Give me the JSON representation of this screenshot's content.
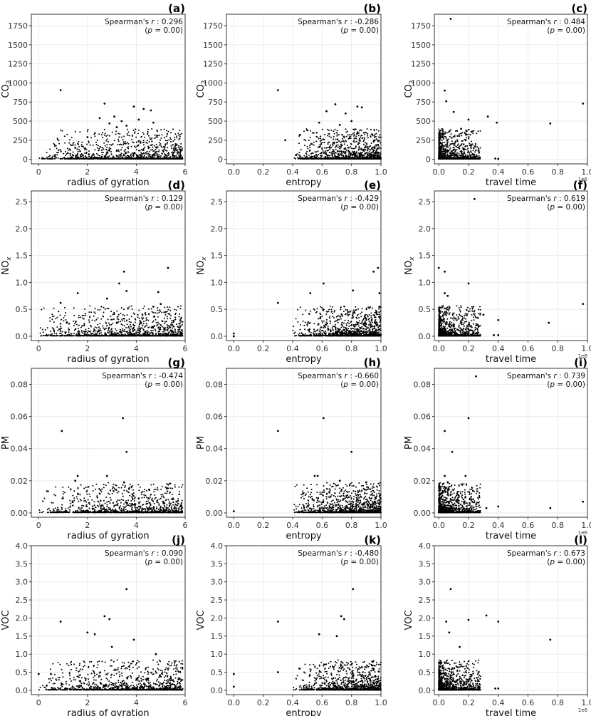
{
  "chart_data": [
    {
      "panel": "(a)",
      "type": "scatter",
      "xlabel": "radius of gyration",
      "ylabel": "CO2",
      "sub": "2",
      "x_axis": "rog",
      "xlim": [
        -0.3,
        6
      ],
      "xticks": [
        0,
        2,
        4,
        6
      ],
      "ylim": [
        -60,
        1900
      ],
      "yticks": [
        0,
        250,
        500,
        750,
        1000,
        1250,
        1500,
        1750
      ],
      "stat": {
        "r_value": "0.296",
        "p_text": "= 0.00"
      },
      "points": [
        [
          0.9,
          905
        ],
        [
          2.7,
          730
        ],
        [
          3.9,
          690
        ],
        [
          4.3,
          660
        ],
        [
          4.6,
          640
        ],
        [
          2.5,
          540
        ],
        [
          3.1,
          560
        ],
        [
          3.4,
          500
        ],
        [
          4.1,
          520
        ],
        [
          2.9,
          470
        ],
        [
          3.6,
          440
        ],
        [
          4.7,
          480
        ],
        [
          2.0,
          290
        ],
        [
          1.5,
          150
        ],
        [
          3.2,
          420
        ]
      ]
    },
    {
      "panel": "(b)",
      "type": "scatter",
      "xlabel": "entropy",
      "ylabel": "CO2",
      "sub": "2",
      "x_axis": "entropy",
      "xlim": [
        -0.05,
        1.0
      ],
      "xticks": [
        0,
        0.2,
        0.4,
        0.6,
        0.8,
        1.0
      ],
      "ylim": [
        -60,
        1900
      ],
      "yticks": [
        0,
        250,
        500,
        750,
        1000,
        1250,
        1500,
        1750
      ],
      "stat": {
        "r_value": "-0.286",
        "p_text": "= 0.00"
      },
      "points": [
        [
          0.3,
          905
        ],
        [
          0.69,
          720
        ],
        [
          0.84,
          690
        ],
        [
          0.87,
          680
        ],
        [
          0.63,
          630
        ],
        [
          0.76,
          600
        ],
        [
          0.58,
          480
        ],
        [
          0.8,
          500
        ],
        [
          0.5,
          380
        ],
        [
          0.35,
          250
        ],
        [
          0.45,
          320
        ],
        [
          0.72,
          450
        ]
      ]
    },
    {
      "panel": "(c)",
      "type": "scatter",
      "xlabel": "travel time",
      "ylabel": "CO2",
      "sub": "2",
      "x_axis": "travel",
      "multiplier": "1e6",
      "xlim": [
        -0.03,
        1.0
      ],
      "xticks": [
        0,
        0.2,
        0.4,
        0.6,
        0.8,
        1.0
      ],
      "ylim": [
        -60,
        1900
      ],
      "yticks": [
        0,
        250,
        500,
        750,
        1000,
        1250,
        1500,
        1750
      ],
      "stat": {
        "r_value": "0.484",
        "p_text": "= 0.00"
      },
      "points": [
        [
          0.08,
          1840
        ],
        [
          0.04,
          900
        ],
        [
          0.97,
          730
        ],
        [
          0.05,
          760
        ],
        [
          0.1,
          620
        ],
        [
          0.33,
          560
        ],
        [
          0.39,
          480
        ],
        [
          0.75,
          470
        ],
        [
          0.2,
          520
        ],
        [
          0.15,
          400
        ],
        [
          0.22,
          360
        ],
        [
          0.38,
          10
        ],
        [
          0.4,
          5
        ]
      ]
    },
    {
      "panel": "(d)",
      "type": "scatter",
      "xlabel": "radius of gyration",
      "ylabel": "NOx",
      "sub": "x",
      "x_axis": "rog",
      "xlim": [
        -0.3,
        6
      ],
      "xticks": [
        0,
        2,
        4,
        6
      ],
      "ylim": [
        -0.08,
        2.7
      ],
      "yticks": [
        0.0,
        0.5,
        1.0,
        1.5,
        2.0,
        2.5
      ],
      "stat": {
        "r_value": "0.129",
        "p_text": "= 0.00"
      },
      "points": [
        [
          3.5,
          1.2
        ],
        [
          5.3,
          1.27
        ],
        [
          3.3,
          0.98
        ],
        [
          3.6,
          0.84
        ],
        [
          4.9,
          0.82
        ],
        [
          1.6,
          0.8
        ],
        [
          0.9,
          0.62
        ],
        [
          2.8,
          0.7
        ],
        [
          5.0,
          0.6
        ],
        [
          4.7,
          0.55
        ],
        [
          5.2,
          0.45
        ]
      ]
    },
    {
      "panel": "(e)",
      "type": "scatter",
      "xlabel": "entropy",
      "ylabel": "NOx",
      "sub": "x",
      "x_axis": "entropy",
      "xlim": [
        -0.05,
        1.0
      ],
      "xticks": [
        0,
        0.2,
        0.4,
        0.6,
        0.8,
        1.0
      ],
      "ylim": [
        -0.08,
        2.7
      ],
      "yticks": [
        0.0,
        0.5,
        1.0,
        1.5,
        2.0,
        2.5
      ],
      "stat": {
        "r_value": "-0.429",
        "p_text": "= 0.00"
      },
      "points": [
        [
          0.98,
          1.27
        ],
        [
          0.95,
          1.2
        ],
        [
          0.61,
          0.98
        ],
        [
          0.81,
          0.85
        ],
        [
          0.52,
          0.8
        ],
        [
          0.99,
          0.8
        ],
        [
          0.3,
          0.62
        ],
        [
          0.99,
          0.55
        ],
        [
          0.97,
          0.45
        ],
        [
          0.99,
          0.35
        ],
        [
          0.0,
          0.05
        ],
        [
          0.0,
          0.0
        ]
      ]
    },
    {
      "panel": "(f)",
      "type": "scatter",
      "xlabel": "travel time",
      "ylabel": "NOx",
      "sub": "x",
      "x_axis": "travel",
      "multiplier": "1e6",
      "xlim": [
        -0.03,
        1.0
      ],
      "xticks": [
        0,
        0.2,
        0.4,
        0.6,
        0.8,
        1.0
      ],
      "ylim": [
        -0.08,
        2.7
      ],
      "yticks": [
        0.0,
        0.5,
        1.0,
        1.5,
        2.0,
        2.5
      ],
      "stat": {
        "r_value": "0.619",
        "p_text": "= 0.00"
      },
      "points": [
        [
          0.24,
          2.55
        ],
        [
          0.0,
          1.27
        ],
        [
          0.04,
          1.2
        ],
        [
          0.2,
          0.98
        ],
        [
          0.04,
          0.8
        ],
        [
          0.06,
          0.75
        ],
        [
          0.97,
          0.6
        ],
        [
          0.3,
          0.4
        ],
        [
          0.4,
          0.3
        ],
        [
          0.74,
          0.25
        ],
        [
          0.37,
          0.02
        ],
        [
          0.4,
          0.02
        ]
      ]
    },
    {
      "panel": "(g)",
      "type": "scatter",
      "xlabel": "radius of gyration",
      "ylabel": "PM",
      "sub": "",
      "x_axis": "rog",
      "xlim": [
        -0.3,
        6
      ],
      "xticks": [
        0,
        2,
        4,
        6
      ],
      "ylim": [
        -0.0027,
        0.09
      ],
      "yticks": [
        0.0,
        0.02,
        0.04,
        0.06,
        0.08
      ],
      "stat": {
        "r_value": "-0.474",
        "p_text": "= 0.00"
      },
      "points": [
        [
          0.95,
          0.051
        ],
        [
          3.45,
          0.059
        ],
        [
          3.6,
          0.038
        ],
        [
          1.6,
          0.023
        ],
        [
          2.8,
          0.023
        ],
        [
          3.5,
          0.019
        ],
        [
          1.5,
          0.02
        ],
        [
          3.7,
          0.015
        ],
        [
          2.5,
          0.012
        ],
        [
          4.1,
          0.009
        ]
      ]
    },
    {
      "panel": "(h)",
      "type": "scatter",
      "xlabel": "entropy",
      "ylabel": "PM",
      "sub": "",
      "x_axis": "entropy",
      "xlim": [
        -0.05,
        1.0
      ],
      "xticks": [
        0,
        0.2,
        0.4,
        0.6,
        0.8,
        1.0
      ],
      "ylim": [
        -0.0027,
        0.09
      ],
      "yticks": [
        0.0,
        0.02,
        0.04,
        0.06,
        0.08
      ],
      "stat": {
        "r_value": "-0.660",
        "p_text": "= 0.00"
      },
      "points": [
        [
          0.3,
          0.051
        ],
        [
          0.61,
          0.059
        ],
        [
          0.8,
          0.038
        ],
        [
          0.55,
          0.023
        ],
        [
          0.57,
          0.023
        ],
        [
          0.72,
          0.02
        ],
        [
          0.9,
          0.019
        ],
        [
          0.65,
          0.013
        ],
        [
          0.47,
          0.012
        ],
        [
          0.0,
          0.001
        ]
      ]
    },
    {
      "panel": "(i)",
      "type": "scatter",
      "xlabel": "travel time",
      "ylabel": "PM",
      "sub": "",
      "x_axis": "travel",
      "multiplier": "1e6",
      "xlim": [
        -0.03,
        1.0
      ],
      "xticks": [
        0,
        0.2,
        0.4,
        0.6,
        0.8,
        1.0
      ],
      "ylim": [
        -0.0027,
        0.09
      ],
      "yticks": [
        0.0,
        0.02,
        0.04,
        0.06,
        0.08
      ],
      "stat": {
        "r_value": "0.739",
        "p_text": "= 0.00"
      },
      "points": [
        [
          0.25,
          0.085
        ],
        [
          0.2,
          0.059
        ],
        [
          0.04,
          0.051
        ],
        [
          0.09,
          0.038
        ],
        [
          0.04,
          0.023
        ],
        [
          0.18,
          0.023
        ],
        [
          0.06,
          0.019
        ],
        [
          0.97,
          0.007
        ],
        [
          0.75,
          0.003
        ],
        [
          0.4,
          0.004
        ],
        [
          0.32,
          0.003
        ]
      ]
    },
    {
      "panel": "(j)",
      "type": "scatter",
      "xlabel": "radius of gyration",
      "ylabel": "VOC",
      "sub": "",
      "x_axis": "rog",
      "xlim": [
        -0.3,
        6
      ],
      "xticks": [
        0,
        2,
        4,
        6
      ],
      "ylim": [
        -0.12,
        4.0
      ],
      "yticks": [
        0.0,
        0.5,
        1.0,
        1.5,
        2.0,
        2.5,
        3.0,
        3.5,
        4.0
      ],
      "stat": {
        "r_value": "0.090",
        "p_text": "= 0.00"
      },
      "points": [
        [
          3.6,
          2.8
        ],
        [
          2.7,
          2.05
        ],
        [
          2.9,
          1.97
        ],
        [
          0.9,
          1.9
        ],
        [
          2.0,
          1.6
        ],
        [
          2.3,
          1.55
        ],
        [
          3.9,
          1.4
        ],
        [
          4.8,
          1.0
        ],
        [
          3.0,
          1.2
        ],
        [
          0.0,
          0.45
        ],
        [
          0.5,
          0.45
        ]
      ]
    },
    {
      "panel": "(k)",
      "type": "scatter",
      "xlabel": "entropy",
      "ylabel": "VOC",
      "sub": "",
      "x_axis": "entropy",
      "xlim": [
        -0.05,
        1.0
      ],
      "xticks": [
        0,
        0.2,
        0.4,
        0.6,
        0.8,
        1.0
      ],
      "ylim": [
        -0.12,
        4.0
      ],
      "yticks": [
        0.0,
        0.5,
        1.0,
        1.5,
        2.0,
        2.5,
        3.0,
        3.5,
        4.0
      ],
      "stat": {
        "r_value": "-0.480",
        "p_text": "= 0.00"
      },
      "points": [
        [
          0.81,
          2.8
        ],
        [
          0.73,
          2.05
        ],
        [
          0.75,
          1.97
        ],
        [
          0.3,
          1.9
        ],
        [
          0.58,
          1.55
        ],
        [
          0.7,
          1.5
        ],
        [
          0.0,
          0.45
        ],
        [
          0.0,
          0.1
        ],
        [
          0.3,
          0.5
        ],
        [
          0.95,
          0.6
        ]
      ]
    },
    {
      "panel": "(l)",
      "type": "scatter",
      "xlabel": "travel time",
      "ylabel": "VOC",
      "sub": "",
      "x_axis": "travel",
      "multiplier": "1e6",
      "xlim": [
        -0.03,
        1.0
      ],
      "xticks": [
        0,
        0.2,
        0.4,
        0.6,
        0.8,
        1.0
      ],
      "ylim": [
        -0.12,
        4.0
      ],
      "yticks": [
        0.0,
        0.5,
        1.0,
        1.5,
        2.0,
        2.5,
        3.0,
        3.5,
        4.0
      ],
      "stat": {
        "r_value": "0.673",
        "p_text": "= 0.00"
      },
      "points": [
        [
          0.08,
          2.8
        ],
        [
          0.32,
          2.07
        ],
        [
          0.2,
          1.95
        ],
        [
          0.4,
          1.9
        ],
        [
          0.05,
          1.9
        ],
        [
          0.75,
          1.4
        ],
        [
          0.14,
          1.2
        ],
        [
          0.38,
          0.05
        ],
        [
          0.4,
          0.05
        ],
        [
          0.07,
          1.6
        ]
      ]
    }
  ]
}
